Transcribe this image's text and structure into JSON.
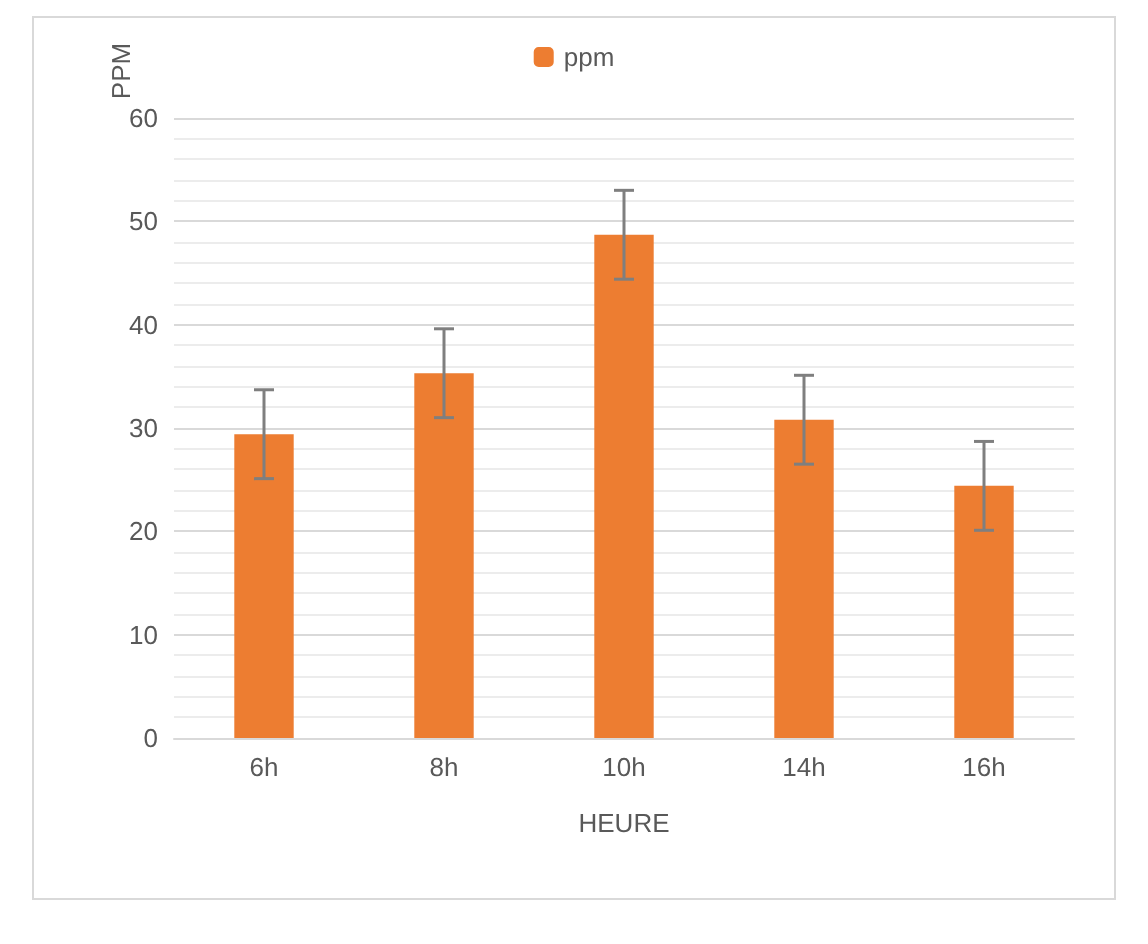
{
  "chart_data": {
    "type": "bar",
    "xlabel": "HEURE",
    "ylabel": "PPM",
    "categories": [
      "6h",
      "8h",
      "10h",
      "14h",
      "16h"
    ],
    "series": [
      {
        "name": "ppm",
        "color": "#ed7d31",
        "values": [
          29.4,
          35.3,
          48.7,
          30.8,
          24.4
        ],
        "errors": [
          4.3,
          4.3,
          4.3,
          4.3,
          4.3
        ]
      }
    ],
    "ylim": [
      0,
      60
    ],
    "yticks": [
      0,
      {
        "value": 2,
        "label": null
      },
      {
        "value": 4,
        "label": null
      },
      {
        "value": 6,
        "label": null
      },
      {
        "value": 8,
        "label": null
      },
      10,
      {
        "value": 12,
        "label": null
      },
      {
        "value": 14,
        "label": null
      },
      {
        "value": 16,
        "label": null
      },
      {
        "value": 18,
        "label": null
      },
      20,
      {
        "value": 22,
        "label": null
      },
      {
        "value": 24,
        "label": null
      },
      {
        "value": 26,
        "label": null
      },
      {
        "value": 28,
        "label": null
      },
      30,
      {
        "value": 32,
        "label": null
      },
      {
        "value": 34,
        "label": null
      },
      {
        "value": 36,
        "label": null
      },
      {
        "value": 38,
        "label": null
      },
      40,
      {
        "value": 42,
        "label": null
      },
      {
        "value": 44,
        "label": null
      },
      {
        "value": 46,
        "label": null
      },
      {
        "value": 48,
        "label": null
      },
      50,
      {
        "value": 52,
        "label": null
      },
      {
        "value": 54,
        "label": null
      },
      {
        "value": 56,
        "label": null
      },
      {
        "value": 58,
        "label": null
      },
      60
    ],
    "grid": "y",
    "legend": "top"
  }
}
